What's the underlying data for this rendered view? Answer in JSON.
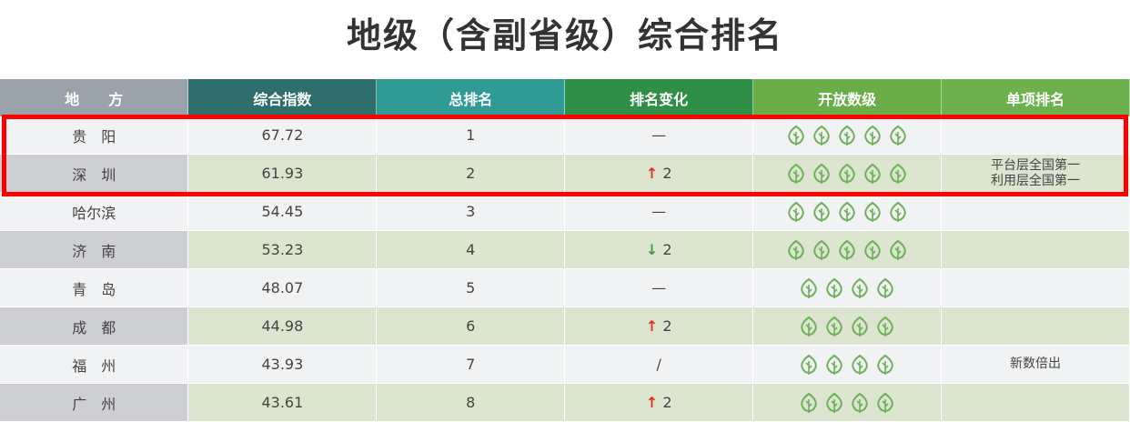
{
  "title": "地级（含副省级）综合排名",
  "headers": [
    "地　　方",
    "综合指数",
    "总排名",
    "排名变化",
    "开放数级",
    "单项排名"
  ],
  "colors": {
    "leaf": "#6fb05a",
    "up": "#e0321e",
    "down": "#3aa047",
    "highlight": "#ff0000"
  },
  "rows": [
    {
      "city": "贵　阳",
      "index": "67.72",
      "rank": "1",
      "change_dir": "none",
      "change": "—",
      "leaves": 5,
      "note": ""
    },
    {
      "city": "深　圳",
      "index": "61.93",
      "rank": "2",
      "change_dir": "up",
      "change": "2",
      "leaves": 5,
      "note": "平台层全国第一\n利用层全国第一"
    },
    {
      "city": "哈尔滨",
      "index": "54.45",
      "rank": "3",
      "change_dir": "none",
      "change": "—",
      "leaves": 5,
      "note": ""
    },
    {
      "city": "济　南",
      "index": "53.23",
      "rank": "4",
      "change_dir": "down",
      "change": "2",
      "leaves": 5,
      "note": ""
    },
    {
      "city": "青　岛",
      "index": "48.07",
      "rank": "5",
      "change_dir": "none",
      "change": "—",
      "leaves": 4,
      "note": ""
    },
    {
      "city": "成　都",
      "index": "44.98",
      "rank": "6",
      "change_dir": "up",
      "change": "2",
      "leaves": 4,
      "note": ""
    },
    {
      "city": "福　州",
      "index": "43.93",
      "rank": "7",
      "change_dir": "none",
      "change": "/",
      "leaves": 4,
      "note": "新数倍出"
    },
    {
      "city": "广　州",
      "index": "43.61",
      "rank": "8",
      "change_dir": "up",
      "change": "2",
      "leaves": 4,
      "note": ""
    }
  ]
}
